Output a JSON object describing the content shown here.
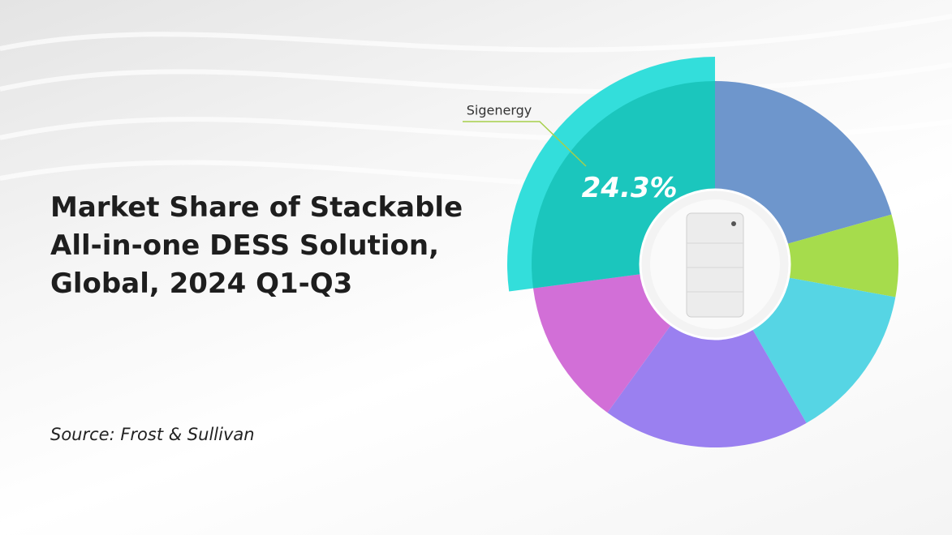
{
  "chart_data": {
    "type": "pie",
    "title": "Market Share of Stackable All-in-one DESS Solution, Global, 2024 Q1-Q3",
    "source": "Source: Frost & Sullivan",
    "categories": [
      null,
      null,
      null,
      null,
      null,
      "Sigenergy"
    ],
    "values": [
      18.5,
      6.5,
      12.4,
      16.4,
      11.6,
      24.3
    ],
    "value_labels": [
      null,
      null,
      null,
      null,
      null,
      "24.3%"
    ],
    "colors": [
      "#6e96cc",
      "#a6dc4c",
      "#56d5e4",
      "#9a80f0",
      "#d26fd7",
      "#1bc6bd"
    ]
  }
}
